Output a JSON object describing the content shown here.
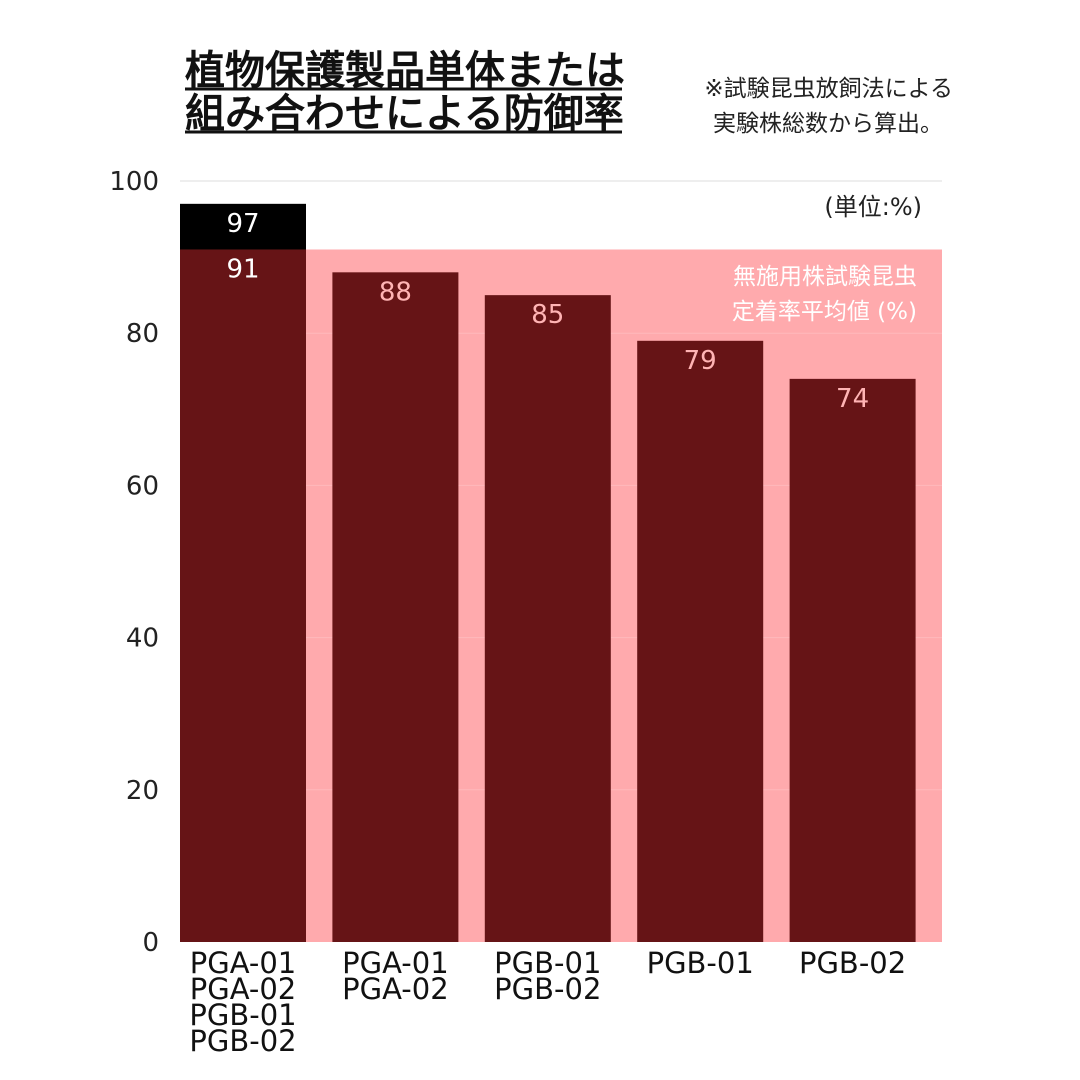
{
  "title_lines": [
    "植物保護製品単体または",
    "組み合わせによる防御率"
  ],
  "note_lines": [
    "※試験昆虫放飼法による",
    "実験株総数から算出。"
  ],
  "colors": {
    "bar": "#661416",
    "top_bar": "#000000",
    "band": "#ffaaad",
    "grid": "#dddddd",
    "value_label_light": "#ffb4b4",
    "value_label_white": "#ffffff"
  },
  "chart_data": {
    "type": "bar",
    "title": "植物保護製品単体または組み合わせによる防御率",
    "unit_label": "(単位:%)",
    "ylim": [
      0,
      100
    ],
    "yticks": [
      "0",
      "20",
      "40",
      "60",
      "80",
      "100"
    ],
    "grid": true,
    "categories": [
      [
        "PGA-01",
        "PGA-02",
        "PGB-01",
        "PGB-02"
      ],
      [
        "PGA-01",
        "PGA-02"
      ],
      [
        "PGB-01",
        "PGB-02"
      ],
      [
        "PGB-01"
      ],
      [
        "PGB-02"
      ]
    ],
    "values": [
      91,
      88,
      85,
      79,
      74
    ],
    "top_segment": {
      "category_index": 0,
      "value": 97
    },
    "reference_band": {
      "value": 91,
      "label_lines": [
        "無施用株試験昆虫",
        "定着率平均値 (%)"
      ]
    }
  }
}
